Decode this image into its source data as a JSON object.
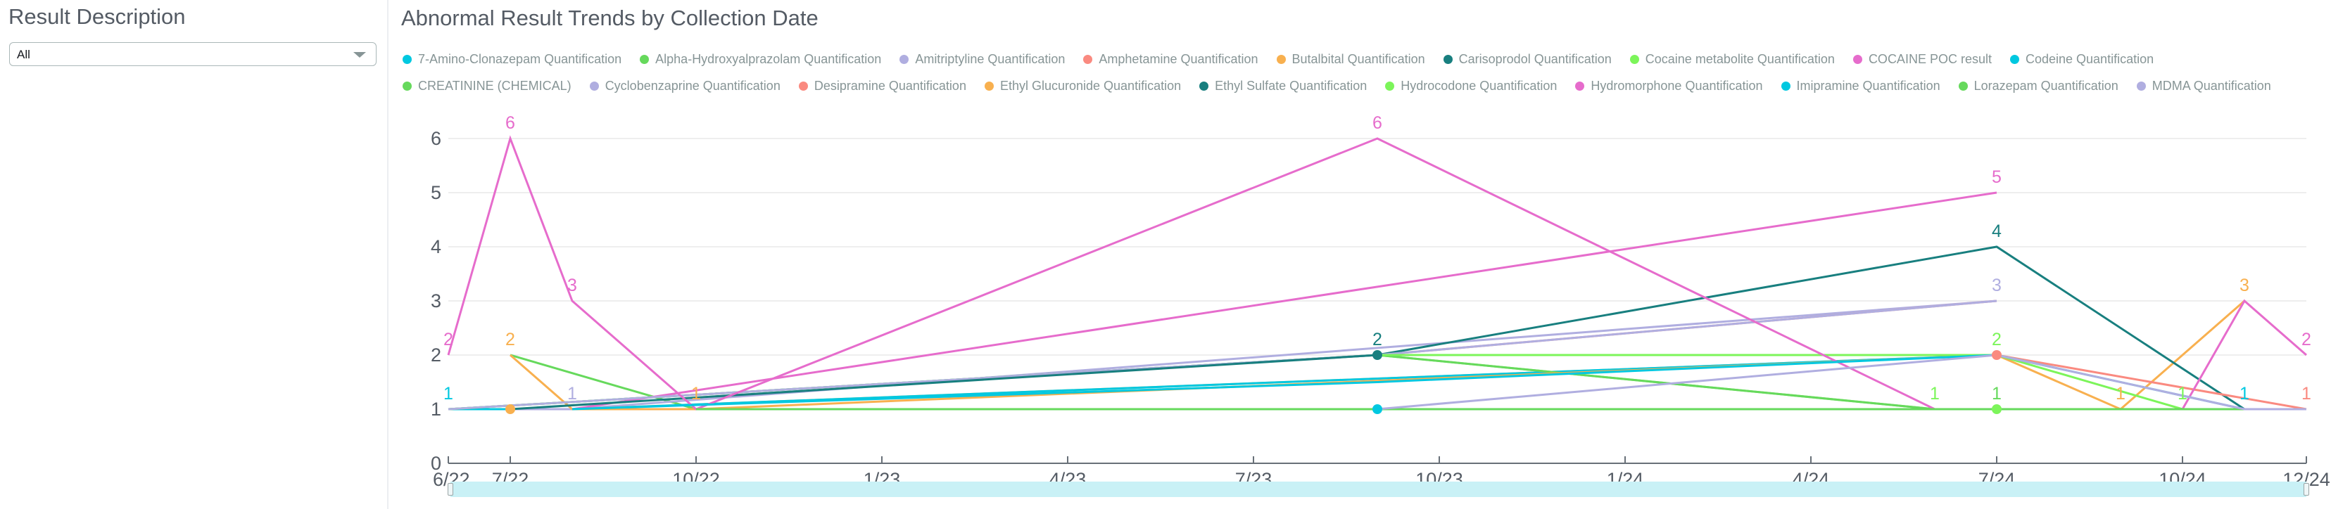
{
  "filter_panel": {
    "title": "Result Description",
    "select": {
      "value": "All"
    }
  },
  "chart_data": {
    "type": "line",
    "title": "Abnormal Result Trends by Collection Date",
    "xlabel": "",
    "ylabel": "",
    "ylim": [
      0,
      6
    ],
    "y_ticks": [
      "0",
      "1",
      "2",
      "3",
      "4",
      "5",
      "6"
    ],
    "x_ticks": [
      {
        "label": "6/22",
        "month": 0
      },
      {
        "label": "7/22",
        "month": 1
      },
      {
        "label": "10/22",
        "month": 4
      },
      {
        "label": "1/23",
        "month": 7
      },
      {
        "label": "4/23",
        "month": 10
      },
      {
        "label": "7/23",
        "month": 13
      },
      {
        "label": "10/23",
        "month": 16
      },
      {
        "label": "1/24",
        "month": 19
      },
      {
        "label": "4/24",
        "month": 22
      },
      {
        "label": "7/24",
        "month": 25
      },
      {
        "label": "10/24",
        "month": 28
      },
      {
        "label": "12/24",
        "month": 30
      }
    ],
    "x_range_months": [
      0,
      30
    ],
    "grid": true,
    "legend_position": "top",
    "series": [
      {
        "name": "7-Amino-Clonazepam Quantification",
        "color": "#00c8e0",
        "points": [
          [
            0,
            1
          ],
          [
            15,
            1
          ],
          [
            29,
            1
          ]
        ],
        "labels": [
          0
        ]
      },
      {
        "name": "Alpha-Hydroxyalprazolam Quantification",
        "color": "#66d95c",
        "points": [
          [
            1,
            2
          ],
          [
            4,
            1
          ],
          [
            24,
            1
          ]
        ],
        "labels": []
      },
      {
        "name": "Amitriptyline Quantification",
        "color": "#b0aee0",
        "points": [
          [
            1,
            1
          ],
          [
            2,
            1
          ],
          [
            25,
            3
          ]
        ],
        "labels": [
          1,
          2
        ]
      },
      {
        "name": "Amphetamine Quantification",
        "color": "#fa8a80",
        "points": [
          [
            15,
            2
          ],
          [
            25,
            3
          ]
        ],
        "labels": []
      },
      {
        "name": "Butalbital Quantification",
        "color": "#f8b04f",
        "points": [
          [
            1,
            2
          ],
          [
            2,
            1
          ],
          [
            25,
            2
          ],
          [
            27,
            1
          ],
          [
            29,
            3
          ]
        ],
        "labels": [
          0,
          3,
          4
        ]
      },
      {
        "name": "Carisoprodol Quantification",
        "color": "#187f7f",
        "points": [
          [
            0,
            1
          ],
          [
            15,
            2
          ],
          [
            25,
            4
          ],
          [
            29,
            1
          ]
        ],
        "labels": [
          1,
          2
        ]
      },
      {
        "name": "Cocaine metabolite Quantification",
        "color": "#7cf55a",
        "points": [
          [
            0,
            1
          ],
          [
            15,
            2
          ],
          [
            24,
            1
          ]
        ],
        "labels": [
          2
        ]
      },
      {
        "name": "COCAINE POC result",
        "color": "#e66ccc",
        "points": [
          [
            2,
            1
          ],
          [
            25,
            5
          ]
        ],
        "labels": [
          1
        ]
      },
      {
        "name": "Codeine Quantification",
        "color": "#00c8e0",
        "points": [
          [
            2,
            1
          ],
          [
            25,
            2
          ]
        ],
        "labels": []
      },
      {
        "name": "CREATININE (CHEMICAL)",
        "color": "#66d95c",
        "points": [
          [
            15,
            2
          ],
          [
            24,
            1
          ]
        ],
        "labels": []
      },
      {
        "name": "Cyclobenzaprine Quantification",
        "color": "#b0aee0",
        "points": [
          [
            0,
            1
          ],
          [
            15,
            2
          ],
          [
            25,
            3
          ]
        ],
        "labels": []
      },
      {
        "name": "Desipramine Quantification",
        "color": "#fa8a80",
        "points": [
          [
            25,
            2
          ],
          [
            30,
            1
          ]
        ],
        "labels": [
          1
        ]
      },
      {
        "name": "Ethyl Glucuronide Quantification",
        "color": "#f8b04f",
        "points": [
          [
            2,
            1
          ],
          [
            4,
            1
          ],
          [
            25,
            2
          ]
        ],
        "labels": [
          1
        ]
      },
      {
        "name": "Ethyl Sulfate Quantification",
        "color": "#187f7f",
        "points": [
          [
            1,
            1
          ],
          [
            15,
            2
          ]
        ],
        "labels": []
      },
      {
        "name": "Hydrocodone Quantification",
        "color": "#7cf55a",
        "points": [
          [
            15,
            2
          ],
          [
            25,
            2
          ],
          [
            28,
            1
          ],
          [
            29,
            1
          ]
        ],
        "labels": [
          1,
          2
        ]
      },
      {
        "name": "Hydromorphone Quantification",
        "color": "#e66ccc",
        "points": [
          [
            0,
            2
          ],
          [
            1,
            6
          ],
          [
            2,
            3
          ],
          [
            4,
            1
          ],
          [
            15,
            6
          ],
          [
            24,
            1
          ],
          [
            27,
            1
          ],
          [
            28,
            1
          ],
          [
            29,
            3
          ],
          [
            30,
            2
          ]
        ],
        "labels": [
          0,
          1,
          2,
          4,
          9
        ]
      },
      {
        "name": "Imipramine Quantification",
        "color": "#00c8e0",
        "points": [
          [
            2,
            1
          ],
          [
            15,
            1.5
          ],
          [
            25,
            2
          ],
          [
            29,
            1
          ]
        ],
        "labels": [
          3
        ]
      },
      {
        "name": "Lorazepam Quantification",
        "color": "#66d95c",
        "points": [
          [
            4,
            1
          ],
          [
            25,
            1
          ],
          [
            29,
            1
          ]
        ],
        "labels": [
          1
        ]
      },
      {
        "name": "MDMA Quantification",
        "color": "#b0aee0",
        "points": [
          [
            15,
            1
          ],
          [
            25,
            2
          ],
          [
            29,
            1
          ],
          [
            30,
            1
          ]
        ],
        "labels": []
      }
    ],
    "markers": [
      {
        "month": 1,
        "value": 1,
        "color": "#f8b04f"
      },
      {
        "month": 15,
        "value": 2,
        "color": "#187f7f"
      },
      {
        "month": 15,
        "value": 1,
        "color": "#00c8e0"
      },
      {
        "month": 25,
        "value": 2,
        "color": "#fa8a80"
      },
      {
        "month": 25,
        "value": 1,
        "color": "#7cf55a"
      }
    ]
  },
  "legend": {
    "row1": [
      {
        "label": "7-Amino-Clonazepam Quantification",
        "color": "#00c8e0"
      },
      {
        "label": "Alpha-Hydroxyalprazolam Quantification",
        "color": "#66d95c"
      },
      {
        "label": "Amitriptyline Quantification",
        "color": "#b0aee0"
      },
      {
        "label": "Amphetamine Quantification",
        "color": "#fa8a80"
      },
      {
        "label": "Butalbital Quantification",
        "color": "#f8b04f"
      },
      {
        "label": "Carisoprodol Quantification",
        "color": "#187f7f"
      },
      {
        "label": "Cocaine metabolite Quantification",
        "color": "#7cf55a"
      },
      {
        "label": "COCAINE POC result",
        "color": "#e66ccc"
      },
      {
        "label": "Codeine Quantification",
        "color": "#00c8e0"
      }
    ],
    "row2": [
      {
        "label": "CREATININE (CHEMICAL)",
        "color": "#66d95c"
      },
      {
        "label": "Cyclobenzaprine Quantification",
        "color": "#b0aee0"
      },
      {
        "label": "Desipramine Quantification",
        "color": "#fa8a80"
      },
      {
        "label": "Ethyl Glucuronide Quantification",
        "color": "#f8b04f"
      },
      {
        "label": "Ethyl Sulfate Quantification",
        "color": "#187f7f"
      },
      {
        "label": "Hydrocodone Quantification",
        "color": "#7cf55a"
      },
      {
        "label": "Hydromorphone Quantification",
        "color": "#e66ccc"
      },
      {
        "label": "Imipramine Quantification",
        "color": "#00c8e0"
      },
      {
        "label": "Lorazepam Quantification",
        "color": "#66d95c"
      },
      {
        "label": "MDMA Quantification",
        "color": "#b0aee0"
      }
    ]
  }
}
